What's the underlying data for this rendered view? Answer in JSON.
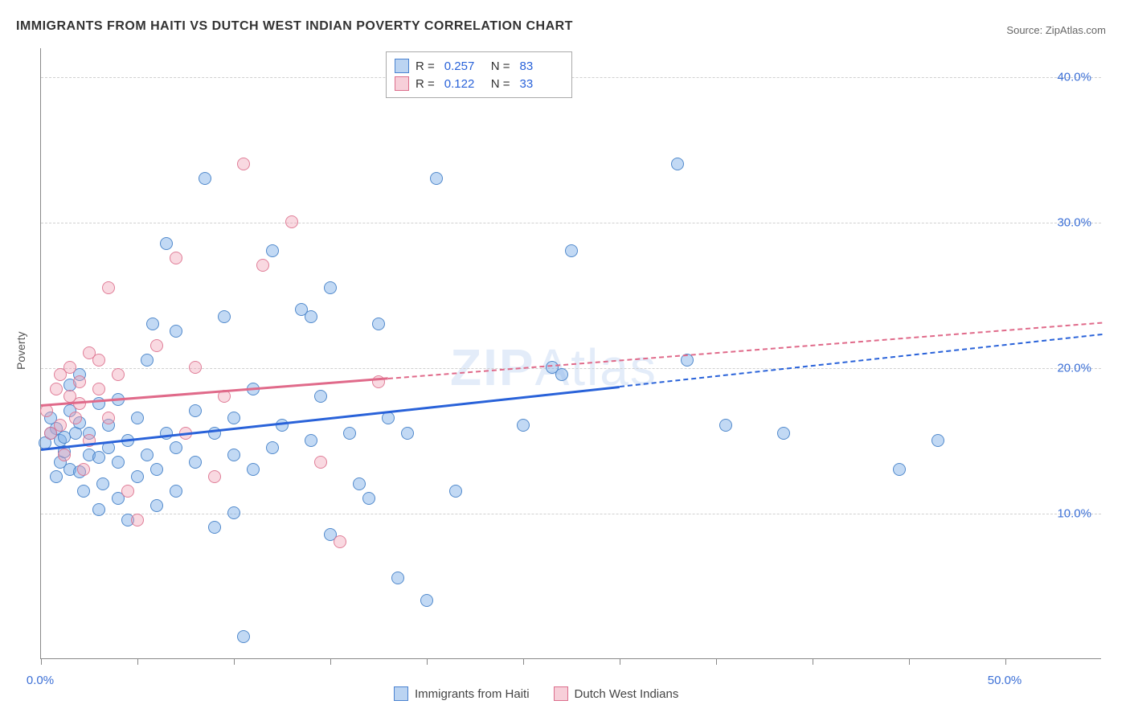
{
  "title": "IMMIGRANTS FROM HAITI VS DUTCH WEST INDIAN POVERTY CORRELATION CHART",
  "source_label": "Source:",
  "source_value": "ZipAtlas.com",
  "watermark": {
    "part1": "ZIP",
    "part2": "Atlas"
  },
  "ylabel": "Poverty",
  "chart": {
    "type": "scatter",
    "xlim": [
      0,
      55
    ],
    "ylim": [
      0,
      42
    ],
    "xticks": [
      0,
      5,
      10,
      15,
      20,
      25,
      30,
      35,
      40,
      45,
      50
    ],
    "xtick_labels": {
      "0": "0.0%",
      "50": "50.0%"
    },
    "yticks": [
      10,
      20,
      30,
      40
    ],
    "ytick_labels": [
      "10.0%",
      "20.0%",
      "30.0%",
      "40.0%"
    ],
    "background_color": "#ffffff",
    "grid_color": "#d0d0d0",
    "axis_color": "#888888",
    "marker_size": 16,
    "series": [
      {
        "name": "Immigrants from Haiti",
        "color_fill": "rgba(120,170,230,0.45)",
        "color_stroke": "#4a82d0",
        "R": "0.257",
        "N": "83",
        "trend": {
          "y_at_xmin": 14.5,
          "y_at_xmax": 22.4,
          "solid_until_x": 30,
          "color": "#2962d9",
          "width": 2.5
        },
        "points": [
          [
            0.2,
            14.8
          ],
          [
            0.5,
            16.5
          ],
          [
            0.8,
            12.5
          ],
          [
            0.8,
            15.8
          ],
          [
            1.0,
            13.5
          ],
          [
            1.0,
            15.0
          ],
          [
            1.2,
            14.2
          ],
          [
            1.2,
            15.2
          ],
          [
            1.5,
            17.0
          ],
          [
            1.5,
            13.0
          ],
          [
            1.5,
            18.8
          ],
          [
            1.8,
            15.5
          ],
          [
            2.0,
            12.8
          ],
          [
            2.0,
            16.2
          ],
          [
            2.0,
            19.5
          ],
          [
            2.2,
            11.5
          ],
          [
            2.5,
            14.0
          ],
          [
            2.5,
            15.5
          ],
          [
            3.0,
            13.8
          ],
          [
            3.0,
            17.5
          ],
          [
            3.0,
            10.2
          ],
          [
            3.2,
            12.0
          ],
          [
            3.5,
            16.0
          ],
          [
            3.5,
            14.5
          ],
          [
            4.0,
            13.5
          ],
          [
            4.0,
            11.0
          ],
          [
            4.0,
            17.8
          ],
          [
            4.5,
            15.0
          ],
          [
            4.5,
            9.5
          ],
          [
            5.0,
            12.5
          ],
          [
            5.0,
            16.5
          ],
          [
            5.5,
            20.5
          ],
          [
            5.5,
            14.0
          ],
          [
            5.8,
            23.0
          ],
          [
            6.0,
            13.0
          ],
          [
            6.0,
            10.5
          ],
          [
            6.5,
            15.5
          ],
          [
            6.5,
            28.5
          ],
          [
            7.0,
            14.5
          ],
          [
            7.0,
            11.5
          ],
          [
            7.0,
            22.5
          ],
          [
            8.0,
            17.0
          ],
          [
            8.0,
            13.5
          ],
          [
            8.5,
            33.0
          ],
          [
            9.0,
            15.5
          ],
          [
            9.0,
            9.0
          ],
          [
            9.5,
            23.5
          ],
          [
            10.0,
            14.0
          ],
          [
            10.0,
            16.5
          ],
          [
            10.0,
            10.0
          ],
          [
            10.5,
            1.5
          ],
          [
            11.0,
            13.0
          ],
          [
            11.0,
            18.5
          ],
          [
            12.0,
            14.5
          ],
          [
            12.0,
            28.0
          ],
          [
            12.5,
            16.0
          ],
          [
            13.5,
            24.0
          ],
          [
            14.0,
            15.0
          ],
          [
            14.0,
            23.5
          ],
          [
            14.5,
            18.0
          ],
          [
            15.0,
            8.5
          ],
          [
            15.0,
            25.5
          ],
          [
            16.0,
            15.5
          ],
          [
            16.5,
            12.0
          ],
          [
            17.0,
            11.0
          ],
          [
            17.5,
            23.0
          ],
          [
            18.0,
            16.5
          ],
          [
            18.5,
            5.5
          ],
          [
            19.0,
            15.5
          ],
          [
            20.0,
            4.0
          ],
          [
            20.5,
            33.0
          ],
          [
            21.5,
            11.5
          ],
          [
            25.0,
            16.0
          ],
          [
            26.5,
            20.0
          ],
          [
            27.0,
            19.5
          ],
          [
            27.5,
            28.0
          ],
          [
            33.5,
            20.5
          ],
          [
            33.0,
            34.0
          ],
          [
            35.5,
            16.0
          ],
          [
            38.5,
            15.5
          ],
          [
            44.5,
            13.0
          ],
          [
            46.5,
            15.0
          ],
          [
            0.5,
            15.5
          ]
        ]
      },
      {
        "name": "Dutch West Indians",
        "color_fill": "rgba(240,160,180,0.40)",
        "color_stroke": "#dc6e8c",
        "R": "0.122",
        "N": "33",
        "trend": {
          "y_at_xmin": 17.5,
          "y_at_xmax": 23.2,
          "solid_until_x": 18,
          "color": "#e06a8a",
          "width": 2
        },
        "points": [
          [
            0.3,
            17.0
          ],
          [
            0.5,
            15.5
          ],
          [
            0.8,
            18.5
          ],
          [
            1.0,
            19.5
          ],
          [
            1.0,
            16.0
          ],
          [
            1.2,
            14.0
          ],
          [
            1.5,
            18.0
          ],
          [
            1.5,
            20.0
          ],
          [
            1.8,
            16.5
          ],
          [
            2.0,
            19.0
          ],
          [
            2.0,
            17.5
          ],
          [
            2.2,
            13.0
          ],
          [
            2.5,
            21.0
          ],
          [
            2.5,
            15.0
          ],
          [
            3.0,
            18.5
          ],
          [
            3.0,
            20.5
          ],
          [
            3.5,
            25.5
          ],
          [
            3.5,
            16.5
          ],
          [
            4.0,
            19.5
          ],
          [
            4.5,
            11.5
          ],
          [
            5.0,
            9.5
          ],
          [
            6.0,
            21.5
          ],
          [
            7.0,
            27.5
          ],
          [
            7.5,
            15.5
          ],
          [
            8.0,
            20.0
          ],
          [
            9.0,
            12.5
          ],
          [
            9.5,
            18.0
          ],
          [
            10.5,
            34.0
          ],
          [
            11.5,
            27.0
          ],
          [
            13.0,
            30.0
          ],
          [
            14.5,
            13.5
          ],
          [
            15.5,
            8.0
          ],
          [
            17.5,
            19.0
          ]
        ]
      }
    ]
  },
  "rn_legend": {
    "r_label": "R =",
    "n_label": "N ="
  },
  "bottom_legend": {
    "items": [
      "Immigrants from Haiti",
      "Dutch West Indians"
    ]
  }
}
